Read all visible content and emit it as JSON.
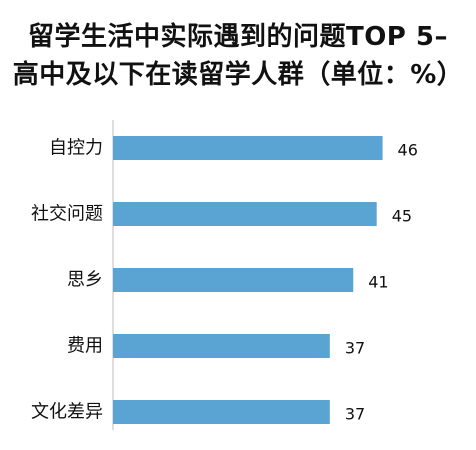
{
  "chart_data": {
    "type": "bar",
    "orientation": "horizontal",
    "title": "留学生活中实际遇到的问题TOP 5–",
    "subtitle": "高中及以下在读留学人群（单位：%）",
    "categories": [
      "自控力",
      "社交问题",
      "思乡",
      "费用",
      "文化差异"
    ],
    "values": [
      46,
      45,
      41,
      37,
      37
    ],
    "xlim": [
      0,
      50
    ],
    "grid": false,
    "legend": "none",
    "bar_color": "#5aa4d3",
    "axis_color": "#c7c7c7"
  }
}
